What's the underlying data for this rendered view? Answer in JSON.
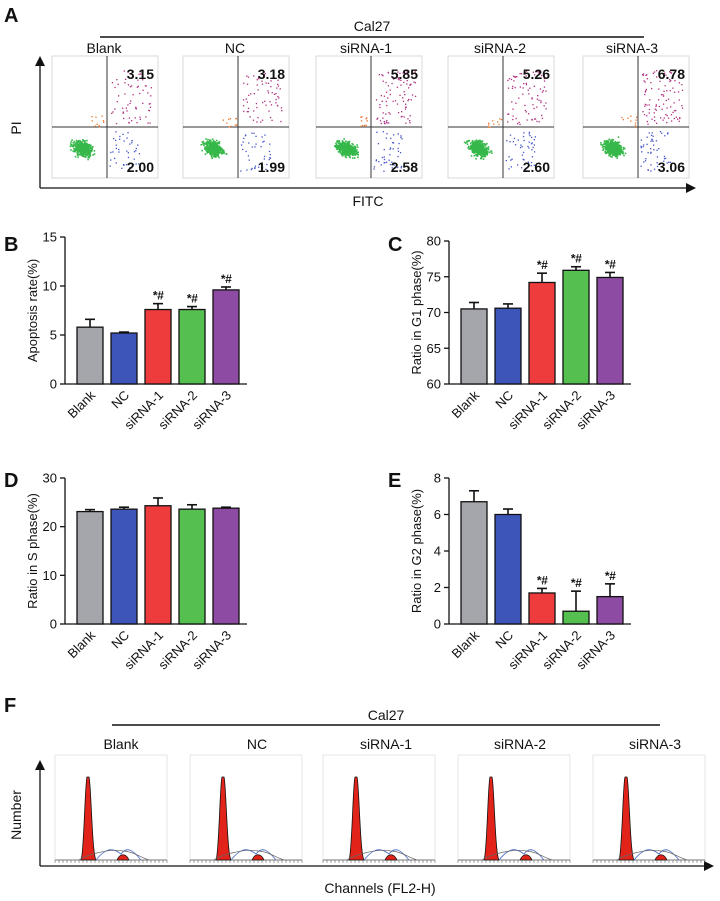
{
  "panels": {
    "A": "A",
    "B": "B",
    "C": "C",
    "D": "D",
    "E": "E",
    "F": "F"
  },
  "colors": {
    "Blank": "#a4a6ab",
    "NC": "#3d55b8",
    "siRNA-1": "#ee3b3b",
    "siRNA-2": "#55bf4f",
    "siRNA-3": "#8e4ba3",
    "histogram_fill": "#e2231a",
    "flow_live": "#36b84a",
    "flow_late": "#b0307f",
    "flow_early": "#4456c8"
  },
  "flow": {
    "header": "Cal27",
    "xlabel": "FITC",
    "ylabel": "PI",
    "groups": [
      "Blank",
      "NC",
      "siRNA-1",
      "siRNA-2",
      "siRNA-3"
    ],
    "upper_right": [
      "3.15",
      "3.18",
      "5.85",
      "5.26",
      "6.78"
    ],
    "lower_right": [
      "2.00",
      "1.99",
      "2.58",
      "2.60",
      "3.06"
    ]
  },
  "histo": {
    "header": "Cal27",
    "xlabel": "Channels (FL2-H)",
    "ylabel": "Number",
    "groups": [
      "Blank",
      "NC",
      "siRNA-1",
      "siRNA-2",
      "siRNA-3"
    ]
  },
  "chart_data": [
    {
      "panel": "B",
      "type": "bar",
      "categories": [
        "Blank",
        "NC",
        "siRNA-1",
        "siRNA-2",
        "siRNA-3"
      ],
      "values": [
        5.8,
        5.2,
        7.6,
        7.6,
        9.6
      ],
      "errors": [
        0.8,
        0.1,
        0.6,
        0.3,
        0.3
      ],
      "annotations": [
        "",
        "",
        "*#",
        "*#",
        "*#"
      ],
      "ylabel": "Apoptosis rate(%)",
      "ylim": [
        0,
        15
      ],
      "yticks": [
        0,
        5,
        10,
        15
      ]
    },
    {
      "panel": "C",
      "type": "bar",
      "categories": [
        "Blank",
        "NC",
        "siRNA-1",
        "siRNA-2",
        "siRNA-3"
      ],
      "values": [
        70.5,
        70.6,
        74.2,
        75.9,
        74.9
      ],
      "errors": [
        0.9,
        0.6,
        1.3,
        0.5,
        0.7
      ],
      "annotations": [
        "",
        "",
        "*#",
        "*#",
        "*#"
      ],
      "ylabel": "Ratio in G1 phase(%)",
      "ylim": [
        60,
        80
      ],
      "yticks": [
        60,
        65,
        70,
        75,
        80
      ]
    },
    {
      "panel": "D",
      "type": "bar",
      "categories": [
        "Blank",
        "NC",
        "siRNA-1",
        "siRNA-2",
        "siRNA-3"
      ],
      "values": [
        23.1,
        23.6,
        24.3,
        23.6,
        23.8
      ],
      "errors": [
        0.4,
        0.4,
        1.6,
        0.9,
        0.2
      ],
      "annotations": [
        "",
        "",
        "",
        "",
        ""
      ],
      "ylabel": "Ratio in S phase(%)",
      "ylim": [
        0,
        30
      ],
      "yticks": [
        0,
        10,
        20,
        30
      ]
    },
    {
      "panel": "E",
      "type": "bar",
      "categories": [
        "Blank",
        "NC",
        "siRNA-1",
        "siRNA-2",
        "siRNA-3"
      ],
      "values": [
        6.7,
        6.0,
        1.7,
        0.7,
        1.5
      ],
      "errors": [
        0.6,
        0.3,
        0.25,
        1.1,
        0.7
      ],
      "annotations": [
        "",
        "",
        "*#",
        "*#",
        "*#"
      ],
      "ylabel": "Ratio in G2 phase(%)",
      "ylim": [
        0,
        8
      ],
      "yticks": [
        0,
        2,
        4,
        6,
        8
      ]
    }
  ]
}
